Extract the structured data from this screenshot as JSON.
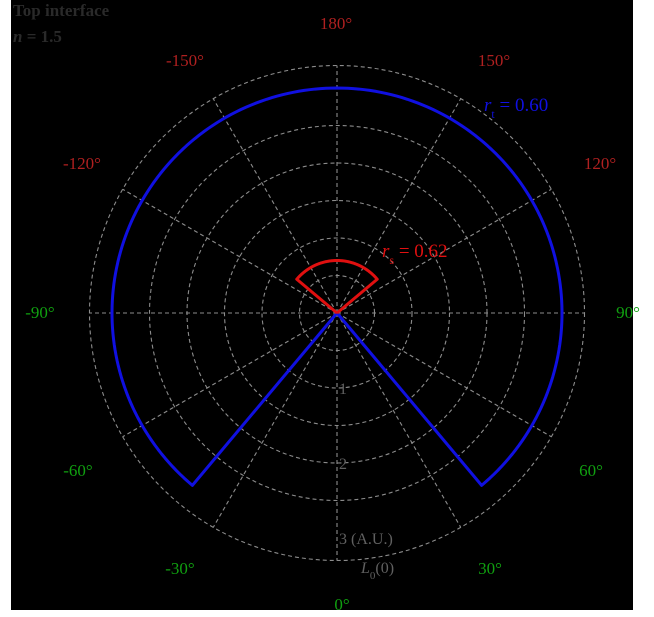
{
  "chart_data": {
    "type": "polar-line",
    "title": "Top interface",
    "subtitle": {
      "symbol": "n",
      "rest": " = 1.5"
    },
    "radial_axis": {
      "range": [
        0,
        3.3
      ],
      "ticks": [
        {
          "value": 1,
          "label": "1"
        },
        {
          "value": 2,
          "label": "2"
        },
        {
          "value": 3,
          "label": "3 (A.U.)"
        }
      ],
      "title": {
        "main": "L",
        "sub": "0",
        "rest": "(0)"
      },
      "grid": true
    },
    "angular_axis": {
      "zero_direction": "bottom",
      "grid": true,
      "ticks": [
        {
          "angle": 0,
          "label": "0°",
          "color": "#10a010"
        },
        {
          "angle": 30,
          "label": "30°",
          "color": "#10a010"
        },
        {
          "angle": 60,
          "label": "60°",
          "color": "#10a010"
        },
        {
          "angle": 90,
          "label": "90°",
          "color": "#10a010"
        },
        {
          "angle": -30,
          "label": "-30°",
          "color": "#10a010"
        },
        {
          "angle": -60,
          "label": "-60°",
          "color": "#10a010"
        },
        {
          "angle": -90,
          "label": "-90°",
          "color": "#10a010"
        },
        {
          "angle": 120,
          "label": "120°",
          "color": "#b02020"
        },
        {
          "angle": 150,
          "label": "150°",
          "color": "#b02020"
        },
        {
          "angle": 180,
          "label": "180°",
          "color": "#b02020"
        },
        {
          "angle": -120,
          "label": "-120°",
          "color": "#b02020"
        },
        {
          "angle": -150,
          "label": "-150°",
          "color": "#b02020"
        }
      ]
    },
    "series": [
      {
        "label": {
          "main": "r",
          "sub": "t",
          "rest": " = 0.60"
        },
        "color": "#1010e0",
        "theta_range": [
          40,
          320
        ],
        "radius": 3.0
      },
      {
        "label": {
          "main": "r",
          "sub": "s",
          "rest": " = 0.62"
        },
        "color": "#e01010",
        "theta_range": [
          130,
          230
        ],
        "radius": 0.7
      }
    ],
    "colors": {
      "background": "#000000",
      "grid": "#8c8c8c",
      "radial_labels": "#606060",
      "title": "#2a2a2a"
    }
  }
}
